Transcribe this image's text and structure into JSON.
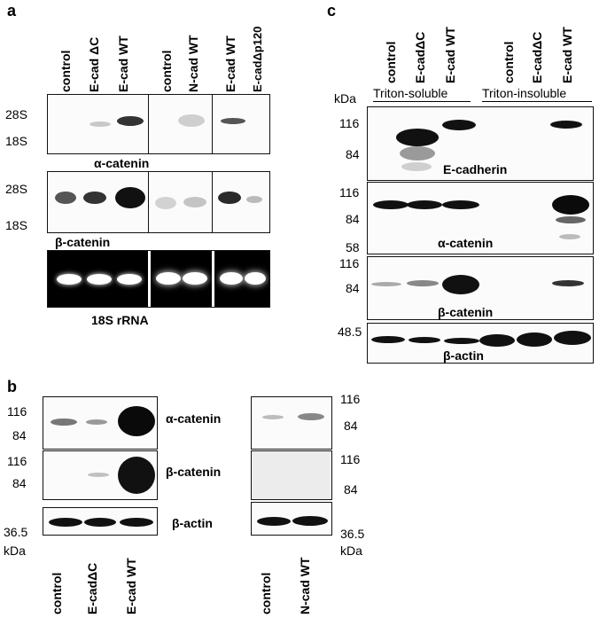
{
  "panels": {
    "a": {
      "letter": "a",
      "lanes": [
        "control",
        "E-cad ΔC",
        "E-cad WT",
        "control",
        "N-cad WT",
        "E-cad WT",
        "E-cadΔp120"
      ],
      "markers": [
        "28S",
        "18S"
      ],
      "blots": [
        "α-catenin",
        "β-catenin",
        "18S rRNA"
      ]
    },
    "b": {
      "letter": "b",
      "left_lanes": [
        "control",
        "E-cadΔC",
        "E-cad WT"
      ],
      "right_lanes": [
        "control",
        "N-cad WT"
      ],
      "markers": [
        "116",
        "84",
        "116",
        "84",
        "36.5"
      ],
      "blots": [
        "α-catenin",
        "β-catenin",
        "β-actin"
      ],
      "unit": "kDa"
    },
    "c": {
      "letter": "c",
      "lanes": [
        "control",
        "E-cadΔC",
        "E-cad WT",
        "control",
        "E-cadΔC",
        "E-cad WT"
      ],
      "fractions": [
        "Triton-soluble",
        "Triton-insoluble"
      ],
      "unit": "kDa",
      "markers": {
        "ecad": [
          "116",
          "84"
        ],
        "acat": [
          "116",
          "84",
          "58"
        ],
        "bcat": [
          "116",
          "84"
        ],
        "actin": [
          "48.5"
        ]
      },
      "blots": [
        "E-cadherin",
        "α-catenin",
        "β-catenin",
        "β-actin"
      ]
    }
  }
}
